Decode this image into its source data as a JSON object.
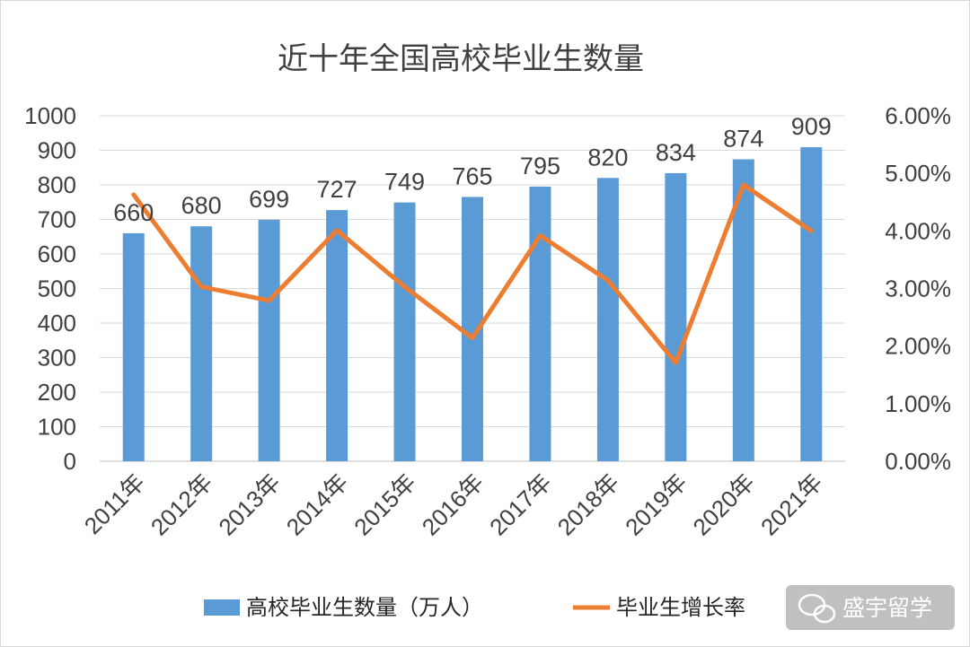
{
  "chart_data": {
    "type": "bar",
    "title": "近十年全国高校毕业生数量",
    "categories": [
      "2011年",
      "2012年",
      "2013年",
      "2014年",
      "2015年",
      "2016年",
      "2017年",
      "2018年",
      "2019年",
      "2020年",
      "2021年"
    ],
    "series": [
      {
        "name": "高校毕业生数量（万人）",
        "type": "bar",
        "axis": "left",
        "color": "#5b9bd5",
        "values": [
          660,
          680,
          699,
          727,
          749,
          765,
          795,
          820,
          834,
          874,
          909
        ],
        "data_labels": [
          "660",
          "680",
          "699",
          "727",
          "749",
          "765",
          "795",
          "820",
          "834",
          "874",
          "909"
        ]
      },
      {
        "name": "毕业生增长率",
        "type": "line",
        "axis": "right",
        "color": "#ed7d31",
        "values": [
          0.0463,
          0.0303,
          0.0279,
          0.0401,
          0.0303,
          0.0214,
          0.0392,
          0.0314,
          0.0171,
          0.048,
          0.04
        ]
      }
    ],
    "y_left": {
      "min": 0,
      "max": 1000,
      "ticks": [
        "0",
        "100",
        "200",
        "300",
        "400",
        "500",
        "600",
        "700",
        "800",
        "900",
        "1000"
      ]
    },
    "y_right": {
      "min": 0,
      "max": 0.06,
      "ticks": [
        "0.00%",
        "1.00%",
        "2.00%",
        "3.00%",
        "4.00%",
        "5.00%",
        "6.00%"
      ]
    },
    "grid": true,
    "legend_position": "bottom"
  },
  "watermark": {
    "text": "盛宇留学",
    "icon": "wechat-icon"
  }
}
